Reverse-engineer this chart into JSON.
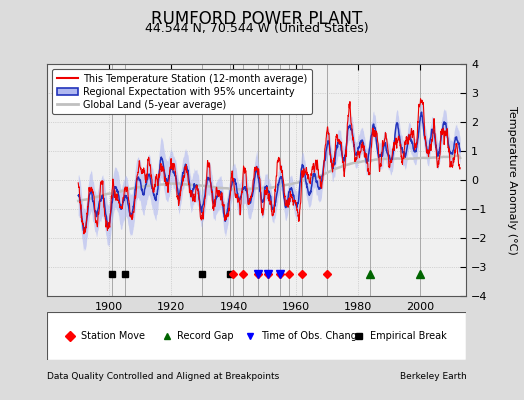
{
  "title": "RUMFORD POWER PLANT",
  "subtitle": "44.544 N, 70.544 W (United States)",
  "ylabel": "Temperature Anomaly (°C)",
  "xlabel_note": "Data Quality Controlled and Aligned at Breakpoints",
  "source_note": "Berkeley Earth",
  "ylim": [
    -4,
    4
  ],
  "xlim": [
    1880,
    2015
  ],
  "yticks": [
    -4,
    -3,
    -2,
    -1,
    0,
    1,
    2,
    3,
    4
  ],
  "xticks": [
    1900,
    1920,
    1940,
    1960,
    1980,
    2000
  ],
  "bg_color": "#dcdcdc",
  "plot_bg_color": "#f0f0f0",
  "legend_labels": [
    "This Temperature Station (12-month average)",
    "Regional Expectation with 95% uncertainty",
    "Global Land (5-year average)"
  ],
  "title_fontsize": 12,
  "subtitle_fontsize": 9,
  "station_moves": [
    1940,
    1943,
    1948,
    1951,
    1955,
    1958,
    1962,
    1970
  ],
  "obs_changes": [
    1948,
    1951,
    1955
  ],
  "record_gaps": [
    1984,
    2000
  ],
  "empirical_breaks": [
    1901,
    1905,
    1930,
    1939
  ],
  "all_event_years": [
    1901,
    1905,
    1930,
    1939,
    1940,
    1943,
    1948,
    1951,
    1955,
    1958,
    1962,
    1970,
    1984,
    2000
  ]
}
